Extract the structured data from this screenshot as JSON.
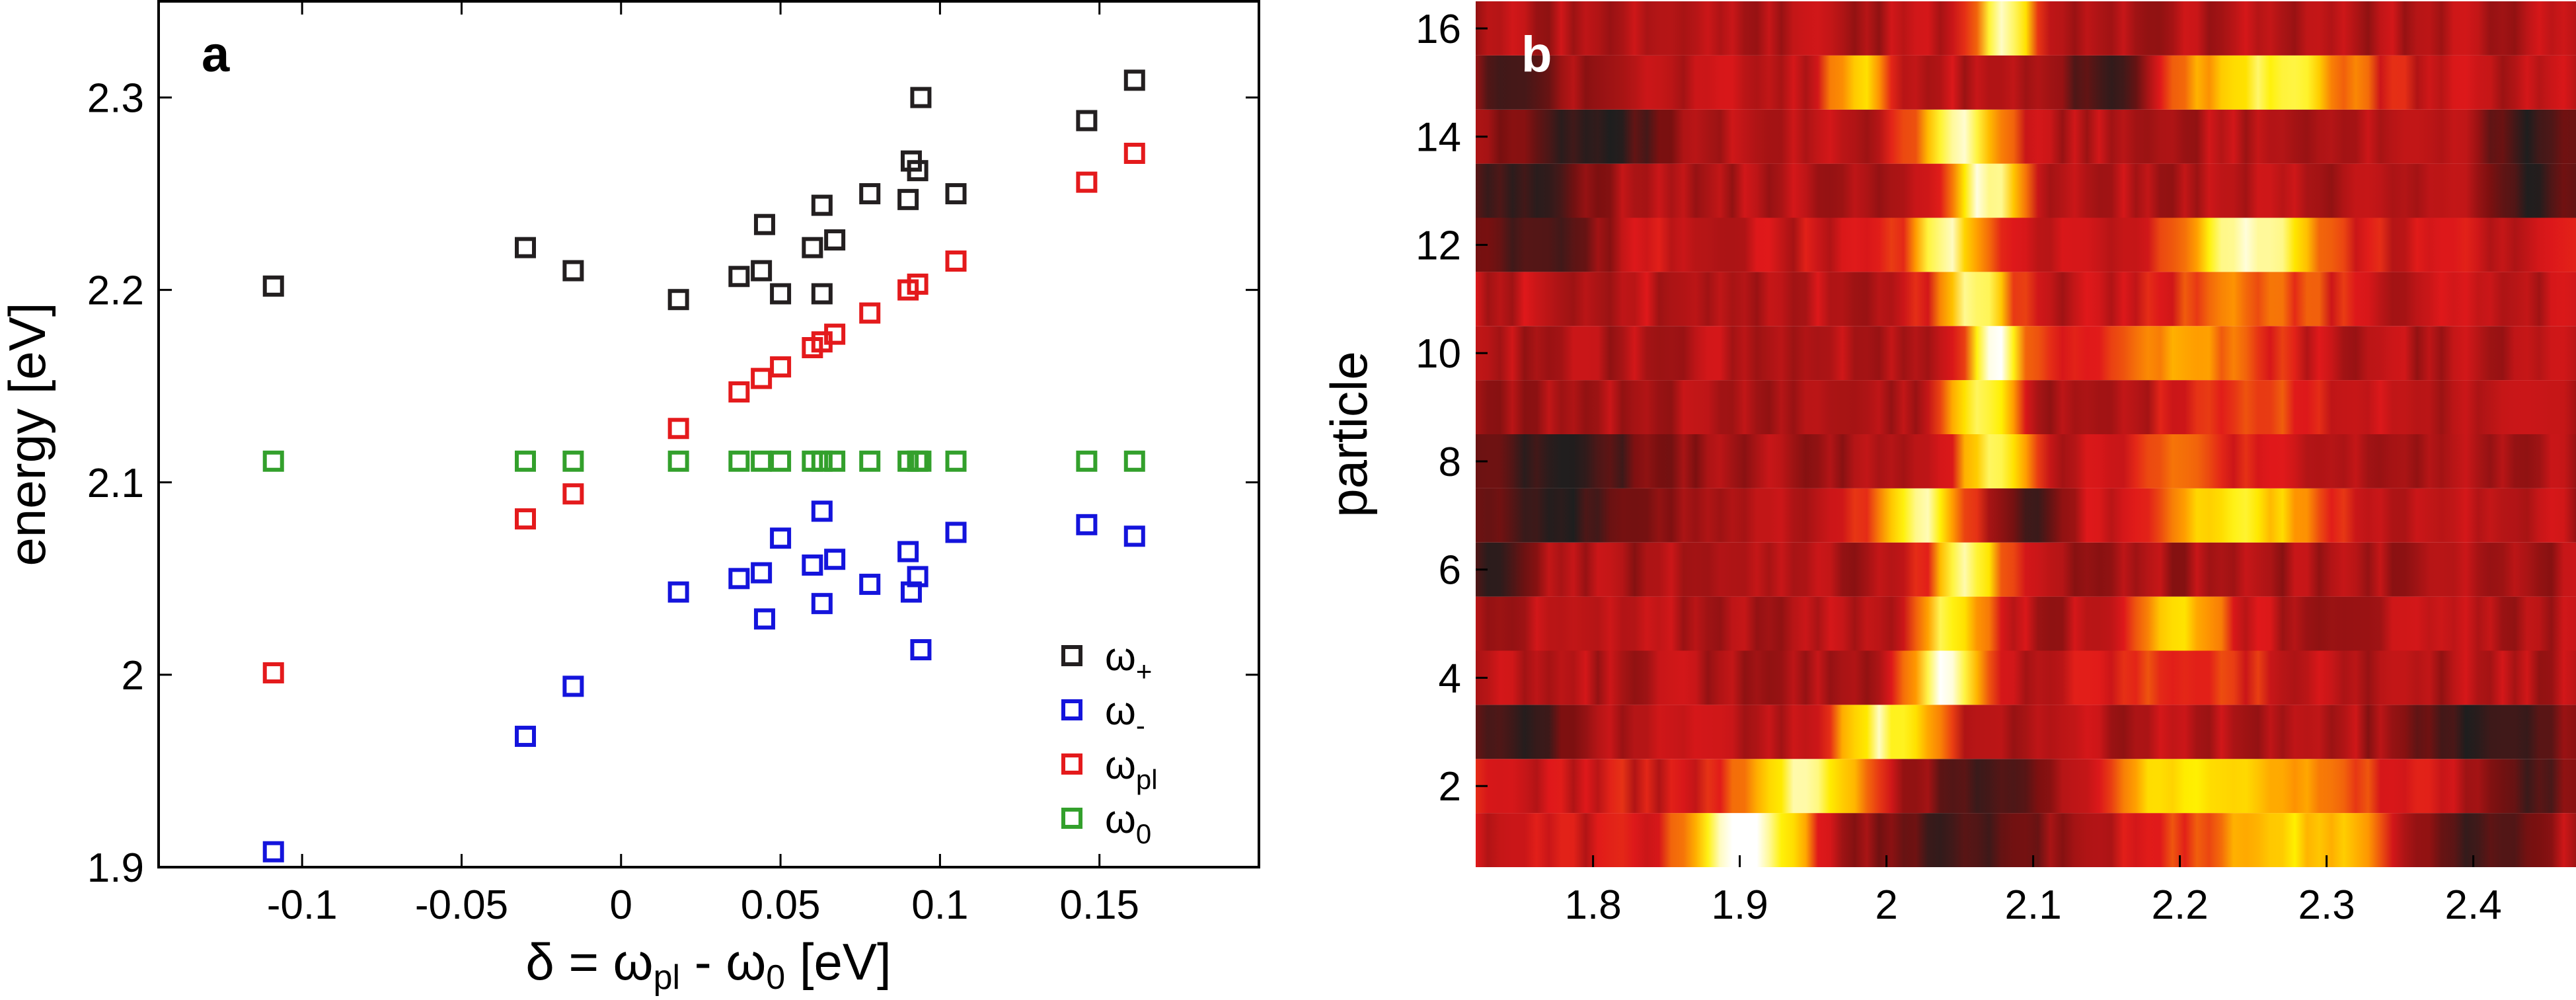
{
  "chart_data": [
    {
      "panel": "a",
      "type": "scatter",
      "xlabel": {
        "pre": "δ = ω",
        "sub1": "pl",
        "mid": " - ω",
        "sub2": "0",
        "post": " [eV]"
      },
      "ylabel": "energy [eV]",
      "xlim": [
        -0.145,
        0.2
      ],
      "ylim": [
        1.9,
        2.35
      ],
      "xticks": [
        -0.1,
        -0.05,
        0,
        0.05,
        0.1,
        0.15
      ],
      "xtick_labels": [
        "-0.1",
        "-0.05",
        "0",
        "0.05",
        "0.1",
        "0.15"
      ],
      "yticks": [
        1.9,
        2.0,
        2.1,
        2.2,
        2.3
      ],
      "ytick_labels": [
        "1.9",
        "2",
        "2.1",
        "2.2",
        "2.3"
      ],
      "legend_position": "lower-right",
      "marker": "square-open",
      "series": [
        {
          "key": "plus",
          "name": "ω",
          "name_sub": "+",
          "color": "#231f20",
          "points": [
            [
              -0.109,
              2.202
            ],
            [
              -0.03,
              2.222
            ],
            [
              -0.015,
              2.21
            ],
            [
              0.018,
              2.195
            ],
            [
              0.037,
              2.207
            ],
            [
              0.044,
              2.21
            ],
            [
              0.045,
              2.234
            ],
            [
              0.05,
              2.198
            ],
            [
              0.06,
              2.222
            ],
            [
              0.063,
              2.244
            ],
            [
              0.063,
              2.198
            ],
            [
              0.067,
              2.226
            ],
            [
              0.078,
              2.25
            ],
            [
              0.09,
              2.247
            ],
            [
              0.091,
              2.267
            ],
            [
              0.093,
              2.262
            ],
            [
              0.094,
              2.3
            ],
            [
              0.105,
              2.25
            ],
            [
              0.146,
              2.288
            ],
            [
              0.161,
              2.309
            ]
          ]
        },
        {
          "key": "minus",
          "name": "ω",
          "name_sub": "-",
          "color": "#1414dc",
          "points": [
            [
              -0.109,
              1.908
            ],
            [
              -0.03,
              1.968
            ],
            [
              -0.015,
              1.994
            ],
            [
              0.018,
              2.043
            ],
            [
              0.037,
              2.05
            ],
            [
              0.044,
              2.053
            ],
            [
              0.045,
              2.029
            ],
            [
              0.05,
              2.071
            ],
            [
              0.06,
              2.057
            ],
            [
              0.063,
              2.037
            ],
            [
              0.063,
              2.085
            ],
            [
              0.067,
              2.06
            ],
            [
              0.078,
              2.047
            ],
            [
              0.09,
              2.064
            ],
            [
              0.091,
              2.043
            ],
            [
              0.093,
              2.051
            ],
            [
              0.094,
              2.013
            ],
            [
              0.105,
              2.074
            ],
            [
              0.146,
              2.078
            ],
            [
              0.161,
              2.072
            ]
          ]
        },
        {
          "key": "pl",
          "name": "ω",
          "name_sub": "pl",
          "color": "#e41a1c",
          "points": [
            [
              -0.109,
              2.001
            ],
            [
              -0.03,
              2.081
            ],
            [
              -0.015,
              2.094
            ],
            [
              0.018,
              2.128
            ],
            [
              0.037,
              2.147
            ],
            [
              0.044,
              2.154
            ],
            [
              0.05,
              2.16
            ],
            [
              0.06,
              2.17
            ],
            [
              0.063,
              2.173
            ],
            [
              0.067,
              2.177
            ],
            [
              0.078,
              2.188
            ],
            [
              0.09,
              2.2
            ],
            [
              0.093,
              2.203
            ],
            [
              0.105,
              2.215
            ],
            [
              0.146,
              2.256
            ],
            [
              0.161,
              2.271
            ]
          ]
        },
        {
          "key": "zero",
          "name": "ω",
          "name_sub": "0",
          "color": "#33a02c",
          "points": [
            [
              -0.109,
              2.111
            ],
            [
              -0.03,
              2.111
            ],
            [
              -0.015,
              2.111
            ],
            [
              0.018,
              2.111
            ],
            [
              0.037,
              2.111
            ],
            [
              0.044,
              2.111
            ],
            [
              0.05,
              2.111
            ],
            [
              0.06,
              2.111
            ],
            [
              0.063,
              2.111
            ],
            [
              0.067,
              2.111
            ],
            [
              0.078,
              2.111
            ],
            [
              0.09,
              2.111
            ],
            [
              0.093,
              2.111
            ],
            [
              0.094,
              2.111
            ],
            [
              0.105,
              2.111
            ],
            [
              0.146,
              2.111
            ],
            [
              0.161,
              2.111
            ]
          ]
        }
      ]
    },
    {
      "panel": "b",
      "type": "heatmap",
      "ylabel": "particle",
      "xlim": [
        1.72,
        2.47
      ],
      "ylim": [
        0.5,
        16.5
      ],
      "xticks": [
        1.8,
        1.9,
        2.0,
        2.1,
        2.2,
        2.3,
        2.4
      ],
      "xtick_labels": [
        "1.8",
        "1.9",
        "2",
        "2.1",
        "2.2",
        "2.3",
        "2.4"
      ],
      "yticks": [
        2,
        4,
        6,
        8,
        10,
        12,
        14,
        16
      ],
      "ytick_labels": [
        "2",
        "4",
        "6",
        "8",
        "10",
        "12",
        "14",
        "16"
      ],
      "colormap": [
        "#1e1e1e",
        "#7a1010",
        "#e0181a",
        "#ff9b00",
        "#fff000",
        "#ffffff"
      ],
      "rows": [
        {
          "particle": 1,
          "base": 0.42,
          "peaks": [
            [
              1.905,
              0.04,
              0.62
            ],
            [
              2.28,
              0.07,
              0.35
            ]
          ],
          "dark": [
            [
              2.05,
              0.07
            ],
            [
              2.4,
              0.05
            ]
          ]
        },
        {
          "particle": 2,
          "base": 0.42,
          "peaks": [
            [
              1.945,
              0.04,
              0.5
            ],
            [
              2.22,
              0.08,
              0.42
            ]
          ],
          "dark": [
            [
              2.08,
              0.06
            ],
            [
              2.44,
              0.03
            ]
          ]
        },
        {
          "particle": 3,
          "base": 0.36,
          "peaks": [
            [
              2.0,
              0.035,
              0.55
            ]
          ],
          "dark": [
            [
              1.75,
              0.03
            ],
            [
              2.41,
              0.05
            ]
          ]
        },
        {
          "particle": 4,
          "base": 0.36,
          "peaks": [
            [
              2.04,
              0.025,
              0.64
            ],
            [
              2.2,
              0.07,
              0.15
            ]
          ],
          "dark": []
        },
        {
          "particle": 5,
          "base": 0.36,
          "peaks": [
            [
              2.045,
              0.025,
              0.52
            ],
            [
              2.2,
              0.035,
              0.42
            ]
          ],
          "dark": []
        },
        {
          "particle": 6,
          "base": 0.34,
          "peaks": [
            [
              2.055,
              0.025,
              0.56
            ]
          ],
          "dark": [
            [
              1.73,
              0.02
            ]
          ]
        },
        {
          "particle": 7,
          "base": 0.36,
          "peaks": [
            [
              2.02,
              0.03,
              0.58
            ],
            [
              2.24,
              0.06,
              0.45
            ]
          ],
          "dark": [
            [
              1.78,
              0.05
            ],
            [
              2.1,
              0.015
            ]
          ]
        },
        {
          "particle": 8,
          "base": 0.34,
          "peaks": [
            [
              2.075,
              0.025,
              0.6
            ],
            [
              2.2,
              0.06,
              0.2
            ]
          ],
          "dark": [
            [
              1.78,
              0.055
            ]
          ]
        },
        {
          "particle": 9,
          "base": 0.34,
          "peaks": [
            [
              2.065,
              0.025,
              0.55
            ],
            [
              2.25,
              0.07,
              0.18
            ]
          ],
          "dark": []
        },
        {
          "particle": 10,
          "base": 0.36,
          "peaks": [
            [
              2.075,
              0.02,
              0.64
            ],
            [
              2.2,
              0.07,
              0.3
            ]
          ],
          "dark": []
        },
        {
          "particle": 11,
          "base": 0.38,
          "peaks": [
            [
              2.06,
              0.025,
              0.55
            ],
            [
              2.25,
              0.06,
              0.2
            ]
          ],
          "dark": []
        },
        {
          "particle": 12,
          "base": 0.4,
          "peaks": [
            [
              2.04,
              0.025,
              0.52
            ],
            [
              2.25,
              0.045,
              0.6
            ]
          ],
          "dark": [
            [
              1.76,
              0.04
            ]
          ]
        },
        {
          "particle": 13,
          "base": 0.36,
          "peaks": [
            [
              2.07,
              0.025,
              0.62
            ]
          ],
          "dark": [
            [
              1.75,
              0.04
            ],
            [
              2.44,
              0.03
            ]
          ]
        },
        {
          "particle": 14,
          "base": 0.36,
          "peaks": [
            [
              2.05,
              0.03,
              0.62
            ]
          ],
          "dark": [
            [
              1.8,
              0.05
            ],
            [
              2.44,
              0.03
            ]
          ]
        },
        {
          "particle": 15,
          "base": 0.38,
          "peaks": [
            [
              1.98,
              0.02,
              0.4
            ],
            [
              2.26,
              0.06,
              0.5
            ]
          ],
          "dark": [
            [
              2.15,
              0.03
            ],
            [
              1.75,
              0.03
            ]
          ]
        },
        {
          "particle": 16,
          "base": 0.36,
          "peaks": [
            [
              2.08,
              0.02,
              0.64
            ]
          ],
          "dark": []
        }
      ]
    }
  ]
}
